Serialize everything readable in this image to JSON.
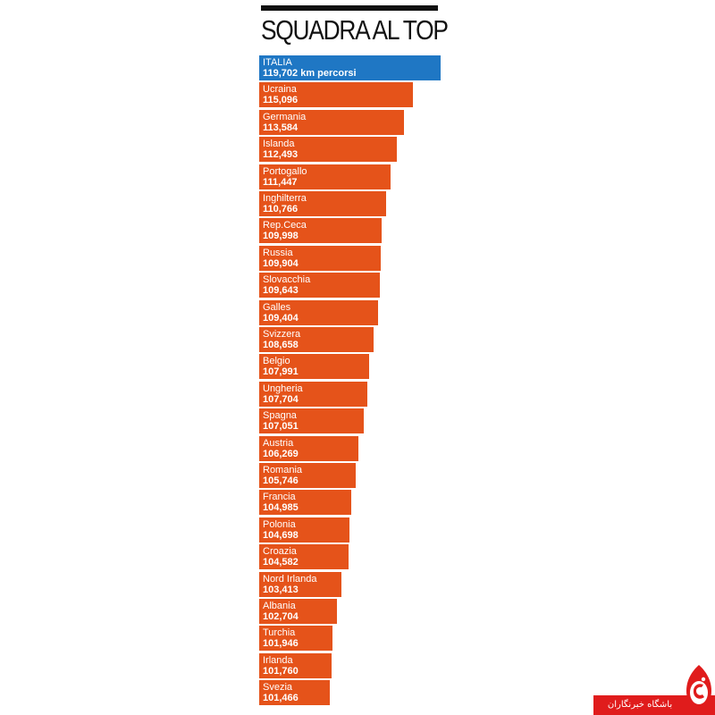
{
  "chart_data": {
    "type": "bar",
    "orientation": "horizontal",
    "title": "SQUADRA AL TOP",
    "categories": [
      "ITALIA",
      "Ucraina",
      "Germania",
      "Islanda",
      "Portogallo",
      "Inghilterra",
      "Rep.Ceca",
      "Russia",
      "Slovacchia",
      "Galles",
      "Svizzera",
      "Belgio",
      "Ungheria",
      "Spagna",
      "Austria",
      "Romania",
      "Francia",
      "Polonia",
      "Croazia",
      "Nord Irlanda",
      "Albania",
      "Turchia",
      "Irlanda",
      "Svezia"
    ],
    "value_labels": [
      "119,702 km percorsi",
      "115,096",
      "113,584",
      "112,493",
      "111,447",
      "110,766",
      "109,998",
      "109,904",
      "109,643",
      "109,404",
      "108,658",
      "107,991",
      "107,704",
      "107,051",
      "106,269",
      "105,746",
      "104,985",
      "104,698",
      "104,582",
      "103,413",
      "102,704",
      "101,946",
      "101,760",
      "101,466"
    ],
    "values": [
      119.702,
      115.096,
      113.584,
      112.493,
      111.447,
      110.766,
      109.998,
      109.904,
      109.643,
      109.404,
      108.658,
      107.991,
      107.704,
      107.051,
      106.269,
      105.746,
      104.985,
      104.698,
      104.582,
      103.413,
      102.704,
      101.946,
      101.76,
      101.466
    ],
    "highlight_index": 0,
    "colors": {
      "highlight": "#1f77c4",
      "bar": "#e5531a",
      "title": "#111111",
      "label": "#ffffff"
    }
  },
  "watermark": {
    "text": "باشگاه خبرنگاران",
    "band_color": "#e01c1c"
  }
}
